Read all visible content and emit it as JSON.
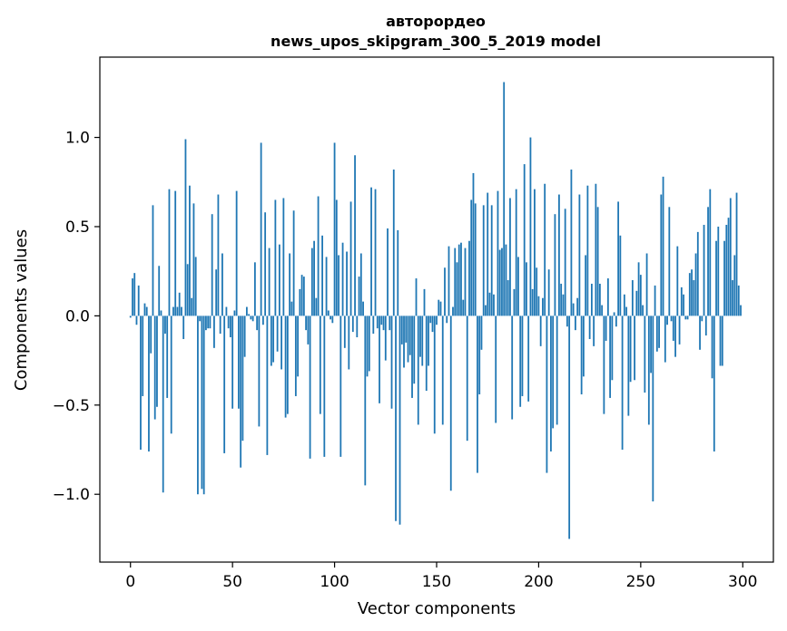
{
  "chart_data": {
    "type": "bar",
    "title_line1": "авторордео",
    "title_line2": "news_upos_skipgram_300_5_2019 model",
    "xlabel": "Vector components",
    "ylabel": "Components values",
    "xlim": [
      -15,
      315
    ],
    "ylim": [
      -1.38,
      1.45
    ],
    "xticks": [
      0,
      50,
      100,
      150,
      200,
      250,
      300
    ],
    "xtick_labels": [
      "0",
      "50",
      "100",
      "150",
      "200",
      "250",
      "300"
    ],
    "yticks": [
      -1.0,
      -0.5,
      0.0,
      0.5,
      1.0
    ],
    "ytick_labels": [
      "−1.0",
      "−0.5",
      "0.0",
      "0.5",
      "1.0"
    ],
    "bar_color": "#1f77b4",
    "x_start": 0,
    "values": [
      -0.01,
      0.21,
      0.24,
      -0.05,
      0.17,
      -0.75,
      -0.45,
      0.07,
      0.05,
      -0.76,
      -0.21,
      0.62,
      -0.58,
      -0.51,
      0.28,
      0.03,
      -0.99,
      -0.1,
      -0.46,
      0.71,
      -0.66,
      0.05,
      0.7,
      0.05,
      0.13,
      0.05,
      -0.13,
      0.99,
      0.29,
      0.73,
      0.1,
      0.63,
      0.33,
      -1.0,
      -0.03,
      -0.97,
      -1.0,
      -0.08,
      -0.07,
      -0.07,
      0.57,
      -0.18,
      0.26,
      0.68,
      -0.1,
      0.35,
      -0.77,
      0.05,
      -0.07,
      -0.12,
      -0.52,
      0.03,
      0.7,
      -0.52,
      -0.85,
      -0.7,
      -0.23,
      0.05,
      0.01,
      -0.02,
      -0.03,
      0.3,
      -0.08,
      -0.62,
      0.97,
      -0.05,
      0.58,
      -0.78,
      0.38,
      -0.28,
      -0.26,
      0.65,
      -0.2,
      0.4,
      -0.3,
      0.66,
      -0.57,
      -0.55,
      0.35,
      0.08,
      0.59,
      -0.45,
      -0.34,
      0.15,
      0.23,
      0.22,
      -0.08,
      -0.16,
      -0.8,
      0.38,
      0.42,
      0.1,
      0.67,
      -0.55,
      0.45,
      -0.79,
      0.33,
      0.03,
      -0.02,
      -0.04,
      0.97,
      0.65,
      0.34,
      -0.79,
      0.41,
      -0.18,
      0.36,
      -0.3,
      0.64,
      -0.09,
      0.9,
      -0.12,
      0.22,
      0.35,
      0.08,
      -0.95,
      -0.34,
      -0.31,
      0.72,
      -0.1,
      0.71,
      -0.07,
      -0.49,
      -0.05,
      -0.08,
      -0.25,
      0.49,
      -0.08,
      -0.52,
      0.82,
      -1.15,
      0.48,
      -1.17,
      -0.16,
      -0.29,
      -0.15,
      -0.26,
      -0.22,
      -0.46,
      -0.38,
      0.21,
      -0.61,
      -0.23,
      -0.28,
      0.15,
      -0.42,
      -0.28,
      -0.04,
      -0.09,
      -0.66,
      -0.05,
      0.09,
      0.08,
      -0.61,
      0.27,
      -0.04,
      0.39,
      -0.98,
      0.05,
      0.38,
      0.3,
      0.4,
      0.41,
      0.09,
      0.38,
      -0.7,
      0.42,
      0.65,
      0.8,
      0.63,
      -0.88,
      -0.44,
      -0.19,
      0.62,
      0.06,
      0.69,
      0.13,
      0.62,
      0.12,
      -0.6,
      0.7,
      0.37,
      0.38,
      1.31,
      0.4,
      0.2,
      0.66,
      -0.58,
      0.15,
      0.71,
      0.33,
      -0.51,
      -0.45,
      0.85,
      0.3,
      -0.48,
      1.0,
      0.15,
      0.71,
      0.27,
      0.11,
      -0.17,
      0.1,
      0.74,
      -0.88,
      0.26,
      -0.76,
      -0.63,
      0.57,
      -0.61,
      0.68,
      0.18,
      0.12,
      0.6,
      -0.06,
      -1.25,
      0.82,
      0.07,
      -0.08,
      0.1,
      0.68,
      -0.44,
      -0.34,
      0.34,
      0.73,
      -0.13,
      0.18,
      -0.17,
      0.74,
      0.61,
      0.18,
      0.06,
      -0.55,
      -0.14,
      0.21,
      -0.46,
      -0.36,
      0.02,
      -0.06,
      0.64,
      0.45,
      -0.75,
      0.12,
      0.05,
      -0.56,
      -0.37,
      0.2,
      -0.36,
      0.14,
      0.3,
      0.23,
      0.06,
      -0.43,
      0.35,
      -0.61,
      -0.32,
      -1.04,
      0.17,
      -0.2,
      -0.18,
      0.68,
      0.78,
      -0.26,
      -0.05,
      0.61,
      -0.03,
      -0.14,
      -0.23,
      0.39,
      -0.16,
      0.16,
      0.12,
      -0.02,
      -0.02,
      0.24,
      0.26,
      0.2,
      0.35,
      0.47,
      -0.19,
      -0.03,
      0.51,
      -0.11,
      0.61,
      0.71,
      -0.35,
      -0.76,
      0.42,
      0.5,
      -0.28,
      -0.28,
      0.42,
      0.51,
      0.55,
      0.66,
      0.2,
      0.34,
      0.69,
      0.17,
      0.06
    ]
  }
}
